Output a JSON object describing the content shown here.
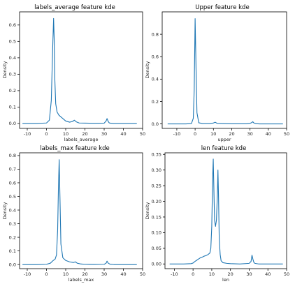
{
  "chart_data": [
    {
      "type": "line",
      "title": "labels_average feature kde",
      "xlabel": "labels_average",
      "ylabel": "Density",
      "xlim": [
        -14,
        50
      ],
      "ylim": [
        -0.03,
        0.68
      ],
      "xticks": [
        -10,
        0,
        10,
        20,
        30,
        40,
        50
      ],
      "yticks": [
        0.0,
        0.1,
        0.2,
        0.3,
        0.4,
        0.5,
        0.6
      ],
      "ytick_labels": [
        "0.0",
        "0.1",
        "0.2",
        "0.3",
        "0.4",
        "0.5",
        "0.6"
      ],
      "series": [
        {
          "x": [
            -12.5,
            -5,
            0,
            1.5,
            2.5,
            3.2,
            3.7,
            4.0,
            4.3,
            4.8,
            5.5,
            6.5,
            8,
            10,
            12,
            13.5,
            14.5,
            15.5,
            17,
            20,
            25,
            30,
            31,
            31.5,
            32,
            32.5,
            33,
            35,
            40,
            47
          ],
          "y": [
            0.0,
            0.0,
            0.003,
            0.02,
            0.14,
            0.45,
            0.64,
            0.52,
            0.28,
            0.12,
            0.07,
            0.05,
            0.035,
            0.015,
            0.008,
            0.012,
            0.02,
            0.01,
            0.003,
            0.002,
            0.001,
            0.002,
            0.015,
            0.03,
            0.015,
            0.005,
            0.002,
            0.0,
            0.0,
            0.0
          ]
        }
      ]
    },
    {
      "type": "line",
      "title": "Upper feature kde",
      "xlabel": "upper",
      "ylabel": "Density",
      "xlim": [
        -18,
        50
      ],
      "ylim": [
        -0.04,
        1.0
      ],
      "xticks": [
        -10,
        0,
        10,
        20,
        30,
        40,
        50
      ],
      "yticks": [
        0.0,
        0.2,
        0.4,
        0.6,
        0.8
      ],
      "ytick_labels": [
        "0.0",
        "0.2",
        "0.4",
        "0.6",
        "0.8"
      ],
      "series": [
        {
          "x": [
            -15,
            -5,
            -2,
            -1,
            -0.5,
            0,
            0.5,
            1,
            2,
            4,
            8,
            10,
            11,
            12,
            20,
            28,
            30,
            31,
            31.5,
            32,
            33,
            35,
            40,
            48
          ],
          "y": [
            0.0,
            0.0,
            0.003,
            0.05,
            0.3,
            0.94,
            0.5,
            0.1,
            0.01,
            0.003,
            0.003,
            0.008,
            0.015,
            0.005,
            0.001,
            0.001,
            0.005,
            0.012,
            0.02,
            0.01,
            0.003,
            0.0,
            0.0,
            0.0
          ]
        }
      ]
    },
    {
      "type": "line",
      "title": "labels_max feature kde",
      "xlabel": "labels_max",
      "ylabel": "Density",
      "xlim": [
        -14,
        50
      ],
      "ylim": [
        -0.03,
        0.82
      ],
      "xticks": [
        -10,
        0,
        10,
        20,
        30,
        40,
        50
      ],
      "yticks": [
        0.0,
        0.1,
        0.2,
        0.3,
        0.4,
        0.5,
        0.6,
        0.7,
        0.8
      ],
      "ytick_labels": [
        "0.0",
        "0.1",
        "0.2",
        "0.3",
        "0.4",
        "0.5",
        "0.6",
        "0.7",
        "0.8"
      ],
      "series": [
        {
          "x": [
            -12.5,
            -5,
            0,
            2,
            3.5,
            4.5,
            5.2,
            5.8,
            6.2,
            6.6,
            7.0,
            7.5,
            8.5,
            10,
            12,
            14,
            15,
            16,
            18,
            20,
            25,
            30,
            31,
            31.5,
            32,
            33,
            35,
            40,
            47
          ],
          "y": [
            0.0,
            0.0,
            0.002,
            0.01,
            0.03,
            0.04,
            0.07,
            0.25,
            0.55,
            0.77,
            0.5,
            0.15,
            0.05,
            0.03,
            0.02,
            0.015,
            0.02,
            0.01,
            0.004,
            0.002,
            0.001,
            0.002,
            0.01,
            0.025,
            0.012,
            0.003,
            0.0,
            0.0,
            0.0
          ]
        }
      ]
    },
    {
      "type": "line",
      "title": "len feature kde",
      "xlabel": "len",
      "ylabel": "Density",
      "xlim": [
        -15,
        50
      ],
      "ylim": [
        -0.015,
        0.355
      ],
      "xticks": [
        -10,
        0,
        10,
        20,
        30,
        40,
        50
      ],
      "yticks": [
        0.0,
        0.05,
        0.1,
        0.15,
        0.2,
        0.25,
        0.3,
        0.35
      ],
      "ytick_labels": [
        "0.00",
        "0.05",
        "0.10",
        "0.15",
        "0.20",
        "0.25",
        "0.30",
        "0.35"
      ],
      "series": [
        {
          "x": [
            -12.5,
            -5,
            -1,
            0,
            1,
            2,
            3,
            4,
            5,
            6,
            7,
            8,
            9,
            9.5,
            10,
            10.5,
            10.8,
            11.2,
            11.5,
            12,
            12.5,
            13,
            13.3,
            13.6,
            14,
            14.5,
            15,
            16,
            18,
            20,
            25,
            30,
            31,
            31.5,
            32,
            32.5,
            33,
            35,
            40,
            48
          ],
          "y": [
            0.0,
            0.0,
            0.001,
            0.003,
            0.008,
            0.012,
            0.016,
            0.02,
            0.022,
            0.025,
            0.027,
            0.03,
            0.035,
            0.05,
            0.12,
            0.28,
            0.335,
            0.22,
            0.14,
            0.12,
            0.14,
            0.22,
            0.3,
            0.22,
            0.08,
            0.03,
            0.01,
            0.004,
            0.002,
            0.001,
            0.0,
            0.002,
            0.008,
            0.028,
            0.015,
            0.005,
            0.002,
            0.0,
            0.0,
            0.0
          ]
        }
      ]
    }
  ]
}
